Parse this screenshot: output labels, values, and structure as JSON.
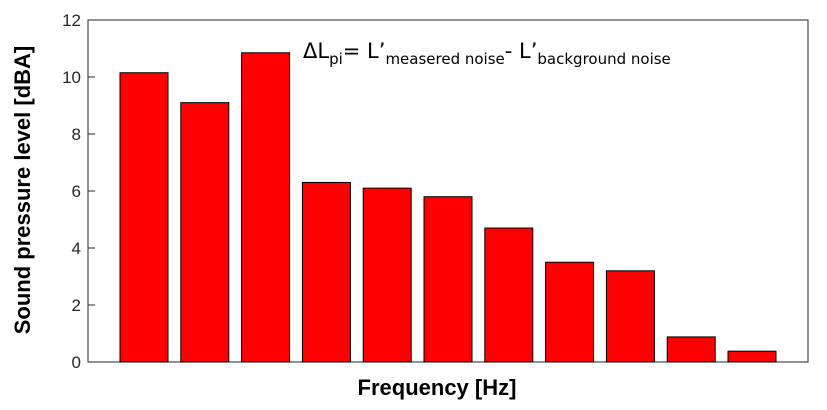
{
  "chart_data": {
    "type": "bar",
    "title": "",
    "xlabel": "Frequency [Hz]",
    "ylabel": "Sound pressure level [dBA]",
    "ylim": [
      0,
      12
    ],
    "yticks": [
      0,
      2,
      4,
      6,
      8,
      10,
      12
    ],
    "values": [
      10.15,
      9.1,
      10.85,
      6.3,
      6.1,
      5.8,
      4.7,
      3.5,
      3.2,
      0.88,
      0.38
    ],
    "bar_color": "#FF0000",
    "grid": false,
    "annotation": {
      "delta": "ΔL",
      "delta_sub": "pi",
      "eq": "= L’",
      "term1_sub": "measered noise",
      "minus": "- L’",
      "term2_sub": "background noise"
    }
  }
}
